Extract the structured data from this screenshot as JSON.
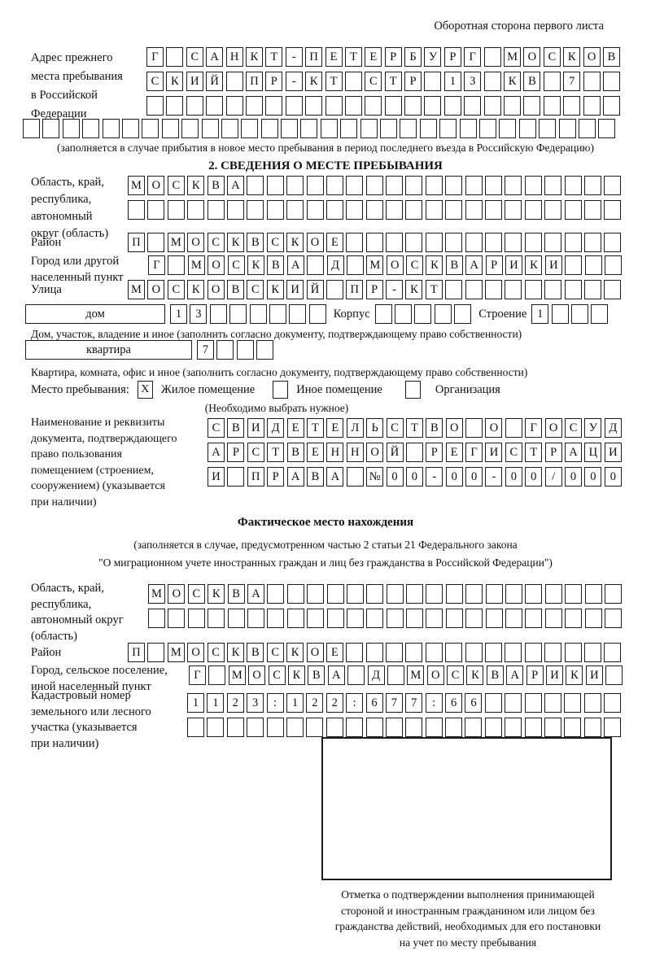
{
  "colors": {
    "ink": "#111111",
    "paper": "#ffffff"
  },
  "header": {
    "right_text": "Оборотная сторона первого листа"
  },
  "prev_address": {
    "label_lines": [
      "Адрес прежнего",
      "места пребывания",
      "в Российской",
      "Федерации"
    ],
    "rows": [
      {
        "cells": "Г САНКТ-ПЕТЕРБУРГ МОСКОВ",
        "len": 24
      },
      {
        "cells": "СКИЙ ПР-КТ СТР 13 КВ 7",
        "len": 24
      },
      {
        "cells": "",
        "len": 24
      },
      {
        "cells": "",
        "len": 30
      }
    ],
    "note": "(заполняется в случае прибытия в новое место пребывания в период последнего въезда в Российскую Федерацию)"
  },
  "section2": {
    "title": "2. СВЕДЕНИЯ О МЕСТЕ ПРЕБЫВАНИЯ",
    "oblast": {
      "label_lines": [
        "Область, край,",
        "республика,",
        "автономный",
        "округ (область)"
      ],
      "rows": [
        {
          "cells": "МОСКВА",
          "len": 25
        },
        {
          "cells": "",
          "len": 25
        }
      ]
    },
    "raion": {
      "label": "Район",
      "row": {
        "cells": "П МОСКВСКОЕ",
        "len": 25
      }
    },
    "gorod": {
      "label_lines": [
        "Город или другой",
        "населенный пункт"
      ],
      "row": {
        "cells": "Г МОСКВА Д МОСКВАРИКИ",
        "len": 24
      }
    },
    "ulitsa": {
      "label": "Улица",
      "row": {
        "cells": "МОСКОВСКИЙ ПР-КТ",
        "len": 25
      }
    },
    "dom": {
      "label": "дом",
      "house_cells": {
        "cells": "13",
        "len": 8
      },
      "korpus_label": "Корпус",
      "korpus_cells": {
        "cells": "",
        "len": 5
      },
      "stroenie_label": "Строение",
      "stroenie_cells": {
        "cells": "1",
        "len": 4
      },
      "caption": "Дом, участок, владение и иное (заполнить согласно документу, подтверждающему право собственности)"
    },
    "kvartira": {
      "label": "квартира",
      "cells": {
        "cells": "7",
        "len": 4
      },
      "caption": "Квартира, комната, офис и иное (заполнить согласно документу, подтверждающему право собственности)"
    },
    "place_type": {
      "label": "Место пребывания:",
      "options": [
        {
          "label": "Жилое помещение",
          "mark": "X"
        },
        {
          "label": "Иное помещение",
          "mark": ""
        },
        {
          "label": "Организация",
          "mark": ""
        }
      ],
      "note": "(Необходимо выбрать нужное)"
    },
    "doc": {
      "label_lines": [
        "Наименование и реквизиты",
        "документа, подтверждающего",
        "право пользования",
        "помещением (строением,",
        "сооружением) (указывается",
        "при наличии)"
      ],
      "rows": [
        {
          "cells": "СВИДЕТЕЛЬСТВО О ГОСУД",
          "len": 21
        },
        {
          "cells": "АРСТВЕННОЙ РЕГИСТРАЦИ",
          "len": 21
        },
        {
          "cells": "И ПРАВА №00-00-00/000",
          "len": 21
        }
      ]
    }
  },
  "section3": {
    "title": "Фактическое место нахождения",
    "note_lines": [
      "(заполняется в случае, предусмотренном частью 2 статьи 21 Федерального закона",
      "\"О миграционном учете иностранных граждан и лиц без гражданства в Российской Федерации\")"
    ],
    "oblast": {
      "label_lines": [
        "Область, край,",
        "республика,",
        "автономный округ",
        "(область)"
      ],
      "rows": [
        {
          "cells": "МОСКВА",
          "len": 24
        },
        {
          "cells": "",
          "len": 24
        }
      ]
    },
    "raion": {
      "label": "Район",
      "row": {
        "cells": "П МОСКВСКОЕ",
        "len": 25
      }
    },
    "gorod": {
      "label_lines": [
        "Город, сельское поселение,",
        "иной населенный пункт"
      ],
      "row": {
        "cells": "Г МОСКВА Д МОСКВАРИКИ",
        "len": 22
      }
    },
    "cadastre": {
      "label_lines": [
        "Кадастровый номер",
        "земельного или лесного",
        "участка (указывается",
        "при наличии)"
      ],
      "rows": [
        {
          "cells": "1123:122:677:66",
          "len": 22
        },
        {
          "cells": "",
          "len": 22
        }
      ]
    },
    "mark_caption_lines": [
      "Отметка о подтверждении выполнения принимающей",
      "стороной и иностранным гражданином или лицом без",
      "гражданства действий, необходимых для его постановки",
      "на учет по месту пребывания"
    ]
  }
}
